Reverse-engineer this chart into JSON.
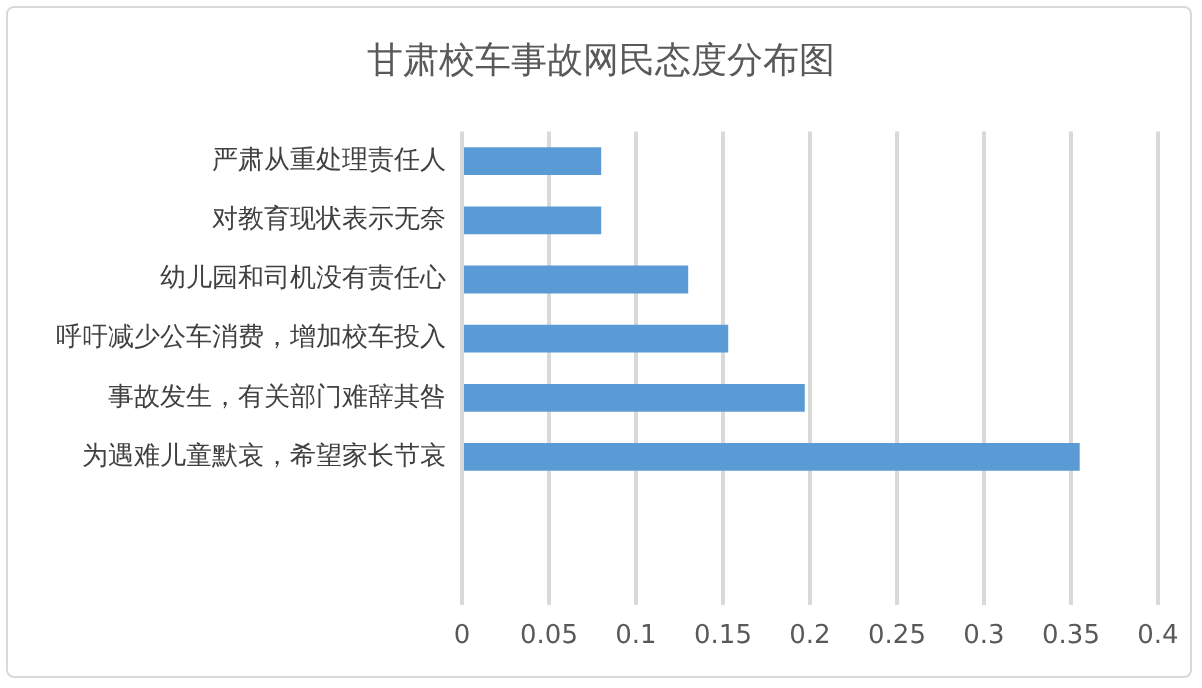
{
  "chart_data": {
    "type": "bar",
    "orientation": "horizontal",
    "title": "甘肃校车事故网民态度分布图",
    "categories": [
      "严肃从重处理责任人",
      "对教育现状表示无奈",
      "幼儿园和司机没有责任心",
      "呼吁减少公车消费，增加校车投入",
      "事故发生，有关部门难辞其咎",
      "为遇难儿童默哀，希望家长节哀",
      null,
      null
    ],
    "values": [
      0.08,
      0.08,
      0.13,
      0.153,
      0.197,
      0.355,
      null,
      null
    ],
    "color": "#5b9bd5",
    "xlim": [
      0,
      0.4
    ],
    "xticks": [
      0,
      0.05,
      0.1,
      0.15,
      0.2,
      0.25,
      0.3,
      0.35,
      0.4
    ],
    "grid": "x",
    "legend": false
  }
}
